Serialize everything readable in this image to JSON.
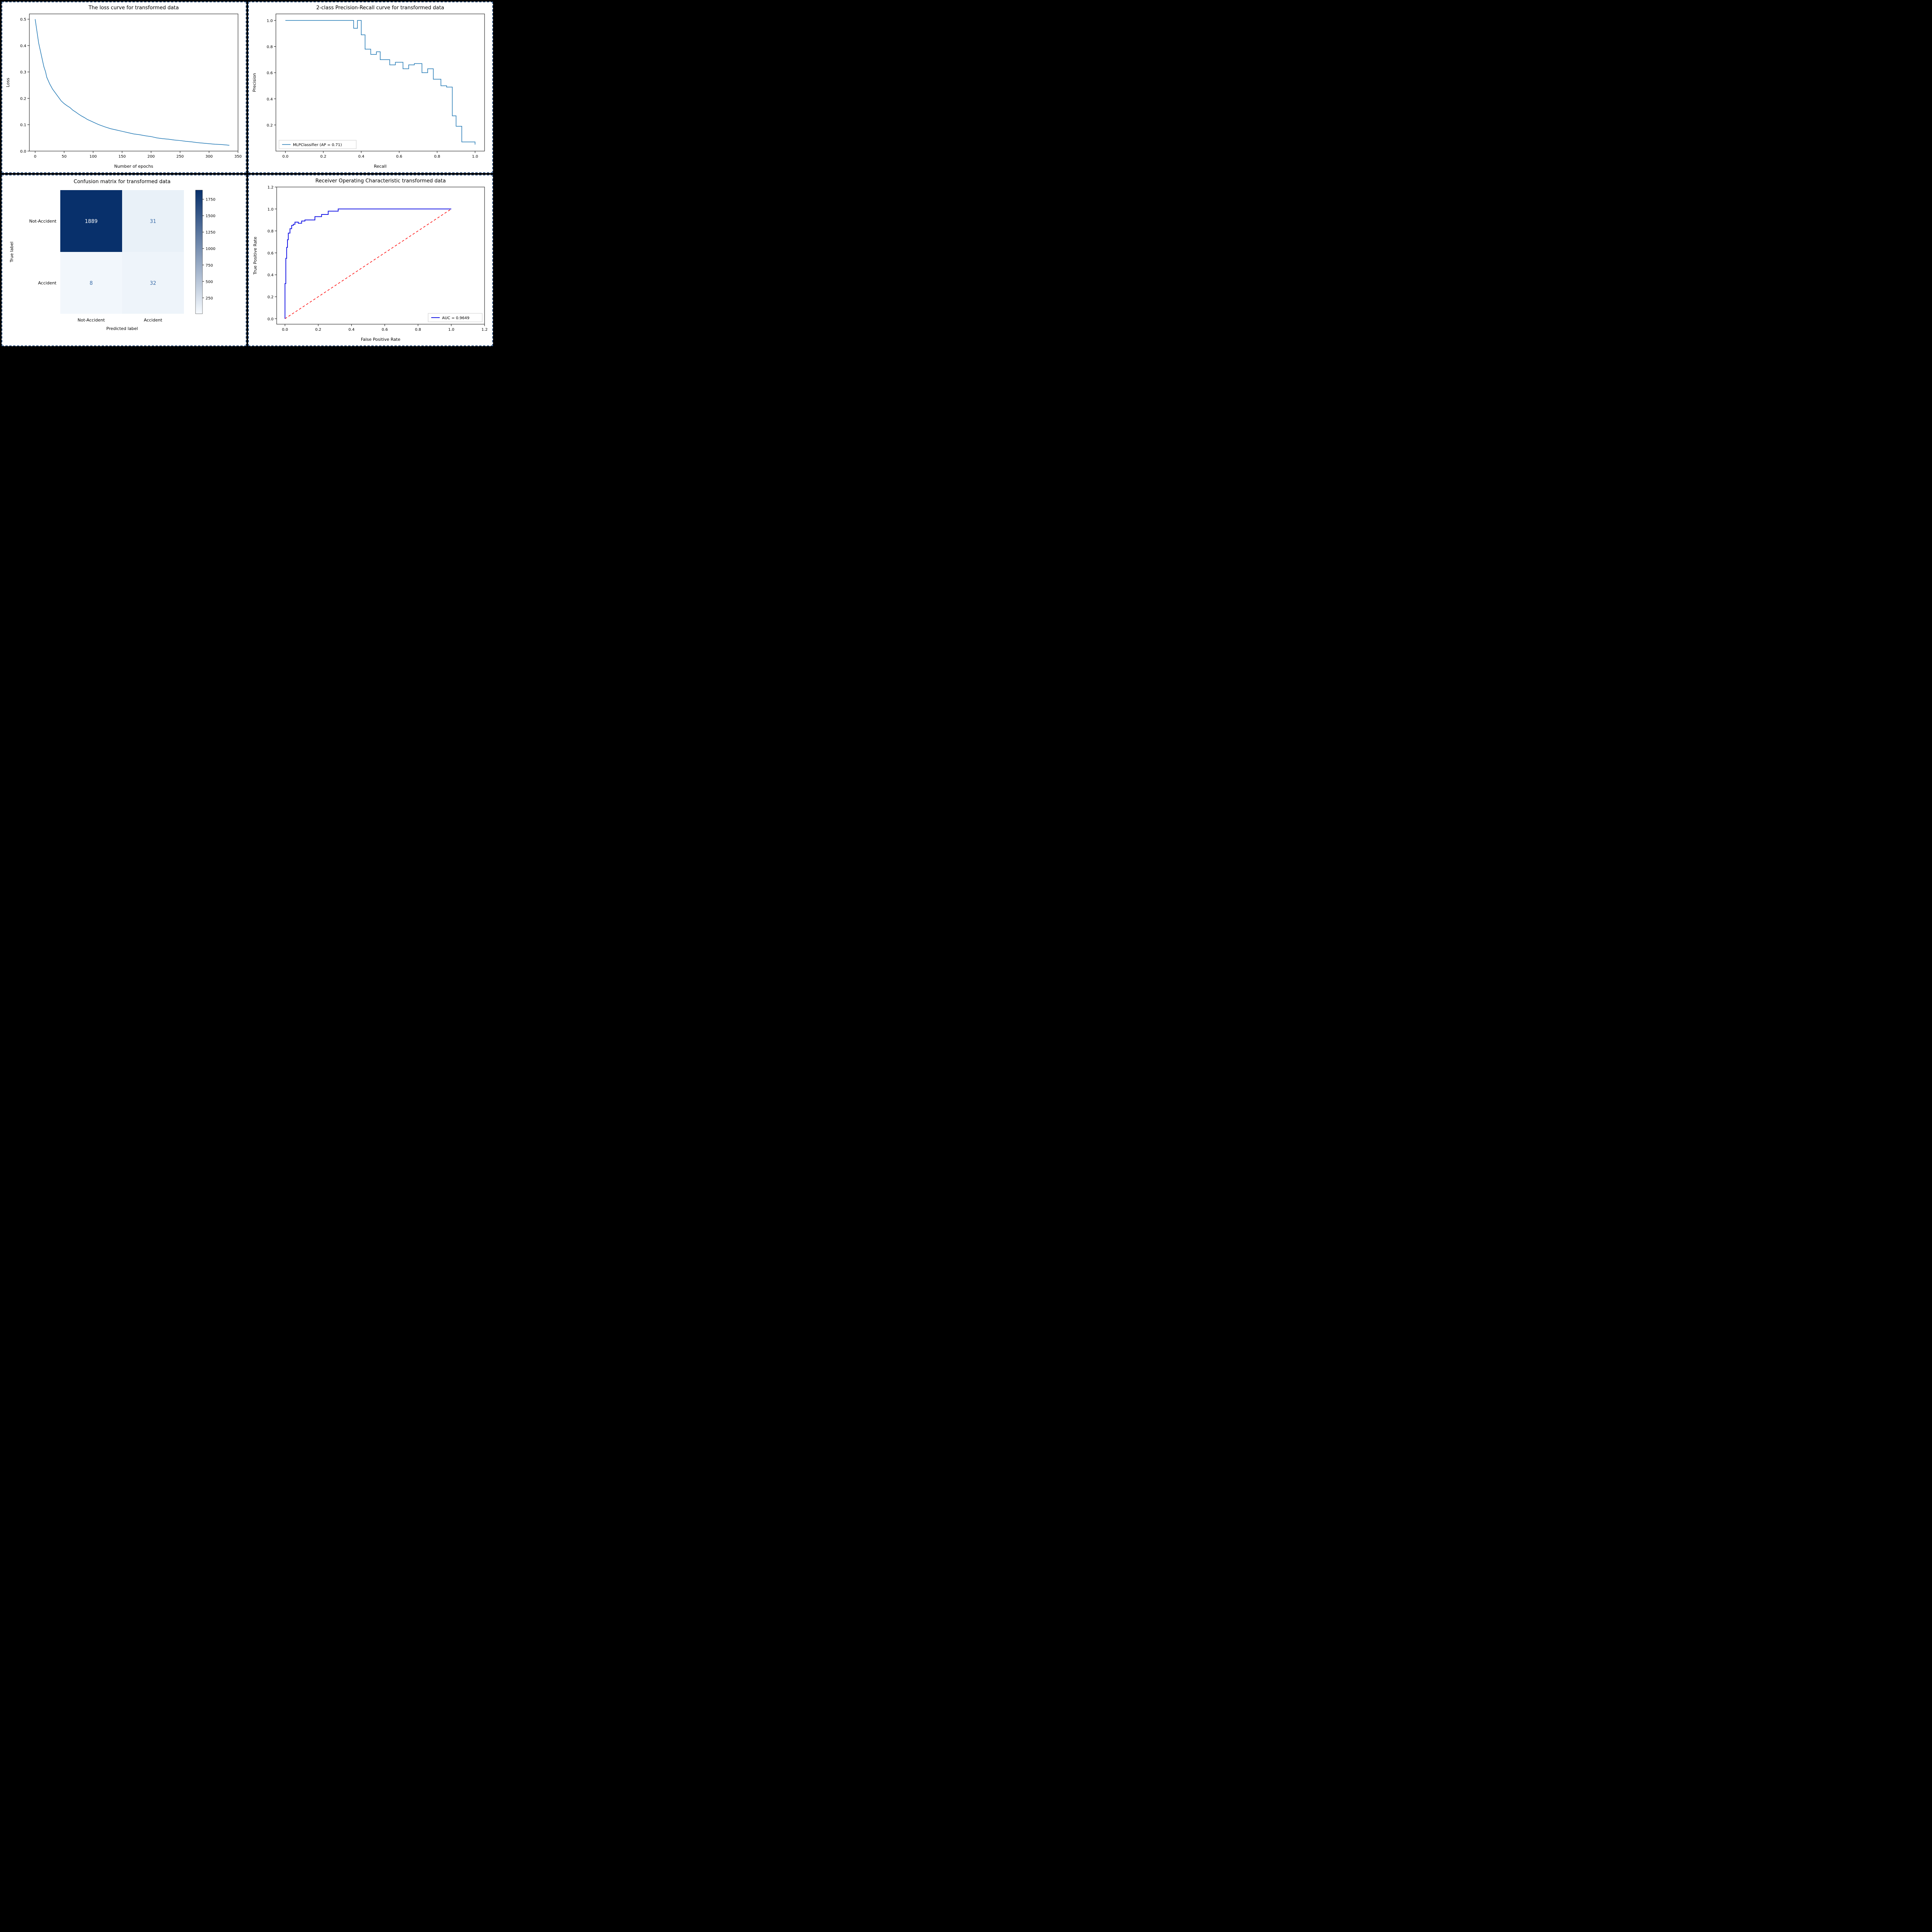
{
  "layout": {
    "grid": "2x2",
    "panel_border_color": "#2a4d7a",
    "panel_border_style": "dashed",
    "panel_border_width": 2,
    "panel_background": "#ffffff",
    "page_background": "#000000",
    "font_family": "DejaVu Sans"
  },
  "loss_curve": {
    "type": "line",
    "title": "The loss curve for transformed data",
    "title_fontsize": 13,
    "xlabel": "Number of epochs",
    "ylabel": "Loss",
    "label_fontsize": 11,
    "tick_fontsize": 10,
    "xlim": [
      -10,
      350
    ],
    "ylim": [
      0.0,
      0.52
    ],
    "xticks": [
      0,
      50,
      100,
      150,
      200,
      250,
      300,
      350
    ],
    "yticks": [
      0.0,
      0.1,
      0.2,
      0.3,
      0.4,
      0.5
    ],
    "line_color": "#1f77b4",
    "line_width": 1.5,
    "background_color": "#ffffff",
    "axis_color": "#000000",
    "x": [
      0,
      2,
      4,
      6,
      8,
      10,
      12,
      15,
      18,
      20,
      25,
      30,
      35,
      40,
      45,
      50,
      55,
      60,
      65,
      70,
      75,
      80,
      85,
      90,
      95,
      100,
      110,
      120,
      130,
      140,
      150,
      160,
      170,
      180,
      190,
      200,
      210,
      220,
      230,
      240,
      250,
      260,
      270,
      280,
      290,
      300,
      310,
      320,
      330,
      335
    ],
    "y": [
      0.5,
      0.47,
      0.44,
      0.41,
      0.39,
      0.37,
      0.35,
      0.32,
      0.3,
      0.28,
      0.255,
      0.235,
      0.22,
      0.205,
      0.19,
      0.18,
      0.172,
      0.165,
      0.155,
      0.148,
      0.14,
      0.133,
      0.127,
      0.12,
      0.115,
      0.11,
      0.1,
      0.092,
      0.085,
      0.08,
      0.075,
      0.07,
      0.065,
      0.062,
      0.058,
      0.055,
      0.05,
      0.047,
      0.045,
      0.042,
      0.04,
      0.037,
      0.035,
      0.032,
      0.03,
      0.028,
      0.026,
      0.025,
      0.023,
      0.022
    ]
  },
  "pr_curve": {
    "type": "step-line",
    "title": "2-class Precision-Recall curve for transformed data",
    "title_fontsize": 13,
    "xlabel": "Recall",
    "ylabel": "Precision",
    "label_fontsize": 11,
    "tick_fontsize": 10,
    "xlim": [
      -0.05,
      1.05
    ],
    "ylim": [
      0.0,
      1.05
    ],
    "xticks": [
      0.0,
      0.2,
      0.4,
      0.6,
      0.8,
      1.0
    ],
    "yticks": [
      0.2,
      0.4,
      0.6,
      0.8,
      1.0
    ],
    "line_color": "#1f77b4",
    "line_width": 1.5,
    "legend_label": "MLPClassifier (AP = 0.71)",
    "legend_position": "lower-left",
    "legend_fontsize": 10,
    "background_color": "#ffffff",
    "recall": [
      0.0,
      0.36,
      0.36,
      0.38,
      0.38,
      0.4,
      0.4,
      0.42,
      0.42,
      0.45,
      0.45,
      0.48,
      0.48,
      0.5,
      0.5,
      0.55,
      0.55,
      0.58,
      0.58,
      0.62,
      0.62,
      0.65,
      0.65,
      0.68,
      0.68,
      0.72,
      0.72,
      0.75,
      0.75,
      0.78,
      0.78,
      0.82,
      0.82,
      0.85,
      0.85,
      0.88,
      0.88,
      0.9,
      0.9,
      0.93,
      0.93,
      1.0,
      1.0
    ],
    "precision": [
      1.0,
      1.0,
      0.94,
      0.94,
      1.0,
      1.0,
      0.89,
      0.89,
      0.78,
      0.78,
      0.74,
      0.74,
      0.76,
      0.76,
      0.7,
      0.7,
      0.66,
      0.66,
      0.68,
      0.68,
      0.63,
      0.63,
      0.66,
      0.66,
      0.67,
      0.67,
      0.6,
      0.6,
      0.63,
      0.63,
      0.55,
      0.55,
      0.5,
      0.5,
      0.49,
      0.49,
      0.27,
      0.27,
      0.19,
      0.19,
      0.07,
      0.07,
      0.05
    ]
  },
  "confusion_matrix": {
    "type": "heatmap",
    "title": "Confusion matrix for transformed data",
    "title_fontsize": 13,
    "xlabel": "Predicted label",
    "ylabel": "True label",
    "label_fontsize": 11,
    "row_labels": [
      "Not-Accident",
      "Accident"
    ],
    "col_labels": [
      "Not-Accident",
      "Accident"
    ],
    "rows": [
      [
        1889,
        31
      ],
      [
        8,
        32
      ]
    ],
    "cell_colors": [
      [
        "#08306b",
        "#e9f1f8"
      ],
      [
        "#f2f7fc",
        "#eef4fa"
      ]
    ],
    "cell_text_colors": [
      [
        "#ffffff",
        "#3a6ca8"
      ],
      [
        "#3a6ca8",
        "#3a6ca8"
      ]
    ],
    "cell_fontsize": 13,
    "colorbar_ticks": [
      250,
      500,
      750,
      1000,
      1250,
      1500,
      1750
    ],
    "colorbar_min": 8,
    "colorbar_max": 1889,
    "colorbar_low_color": "#f7fbff",
    "colorbar_high_color": "#08306b",
    "tick_fontsize": 10
  },
  "roc_curve": {
    "type": "line",
    "title": "Receiver Operating Characteristic transformed data",
    "title_fontsize": 13,
    "xlabel": "False Positive Rate",
    "ylabel": "True Positive Rate",
    "label_fontsize": 11,
    "tick_fontsize": 10,
    "xlim": [
      -0.05,
      1.2
    ],
    "ylim": [
      -0.05,
      1.2
    ],
    "xticks": [
      0.0,
      0.2,
      0.4,
      0.6,
      0.8,
      1.0,
      1.2
    ],
    "yticks": [
      0.0,
      0.2,
      0.4,
      0.6,
      0.8,
      1.0,
      1.2
    ],
    "roc_line_color": "#1818e5",
    "roc_line_width": 2,
    "diag_line_color": "#ff0000",
    "diag_line_style": "dashed",
    "diag_line_width": 1.5,
    "legend_label": "AUC = 0.9649",
    "legend_position": "lower-right",
    "legend_fontsize": 10,
    "background_color": "#ffffff",
    "fpr": [
      0.0,
      0.0,
      0.005,
      0.005,
      0.01,
      0.01,
      0.015,
      0.015,
      0.02,
      0.02,
      0.03,
      0.03,
      0.04,
      0.04,
      0.05,
      0.05,
      0.06,
      0.06,
      0.08,
      0.08,
      0.1,
      0.1,
      0.12,
      0.12,
      0.18,
      0.18,
      0.22,
      0.22,
      0.26,
      0.26,
      0.32,
      0.32,
      1.0
    ],
    "tpr": [
      0.0,
      0.32,
      0.32,
      0.55,
      0.55,
      0.65,
      0.65,
      0.72,
      0.72,
      0.78,
      0.78,
      0.82,
      0.82,
      0.85,
      0.85,
      0.86,
      0.86,
      0.88,
      0.88,
      0.87,
      0.87,
      0.89,
      0.89,
      0.9,
      0.9,
      0.93,
      0.93,
      0.95,
      0.95,
      0.98,
      0.98,
      1.0,
      1.0
    ],
    "diag_x": [
      0.0,
      1.0
    ],
    "diag_y": [
      0.0,
      1.0
    ]
  }
}
